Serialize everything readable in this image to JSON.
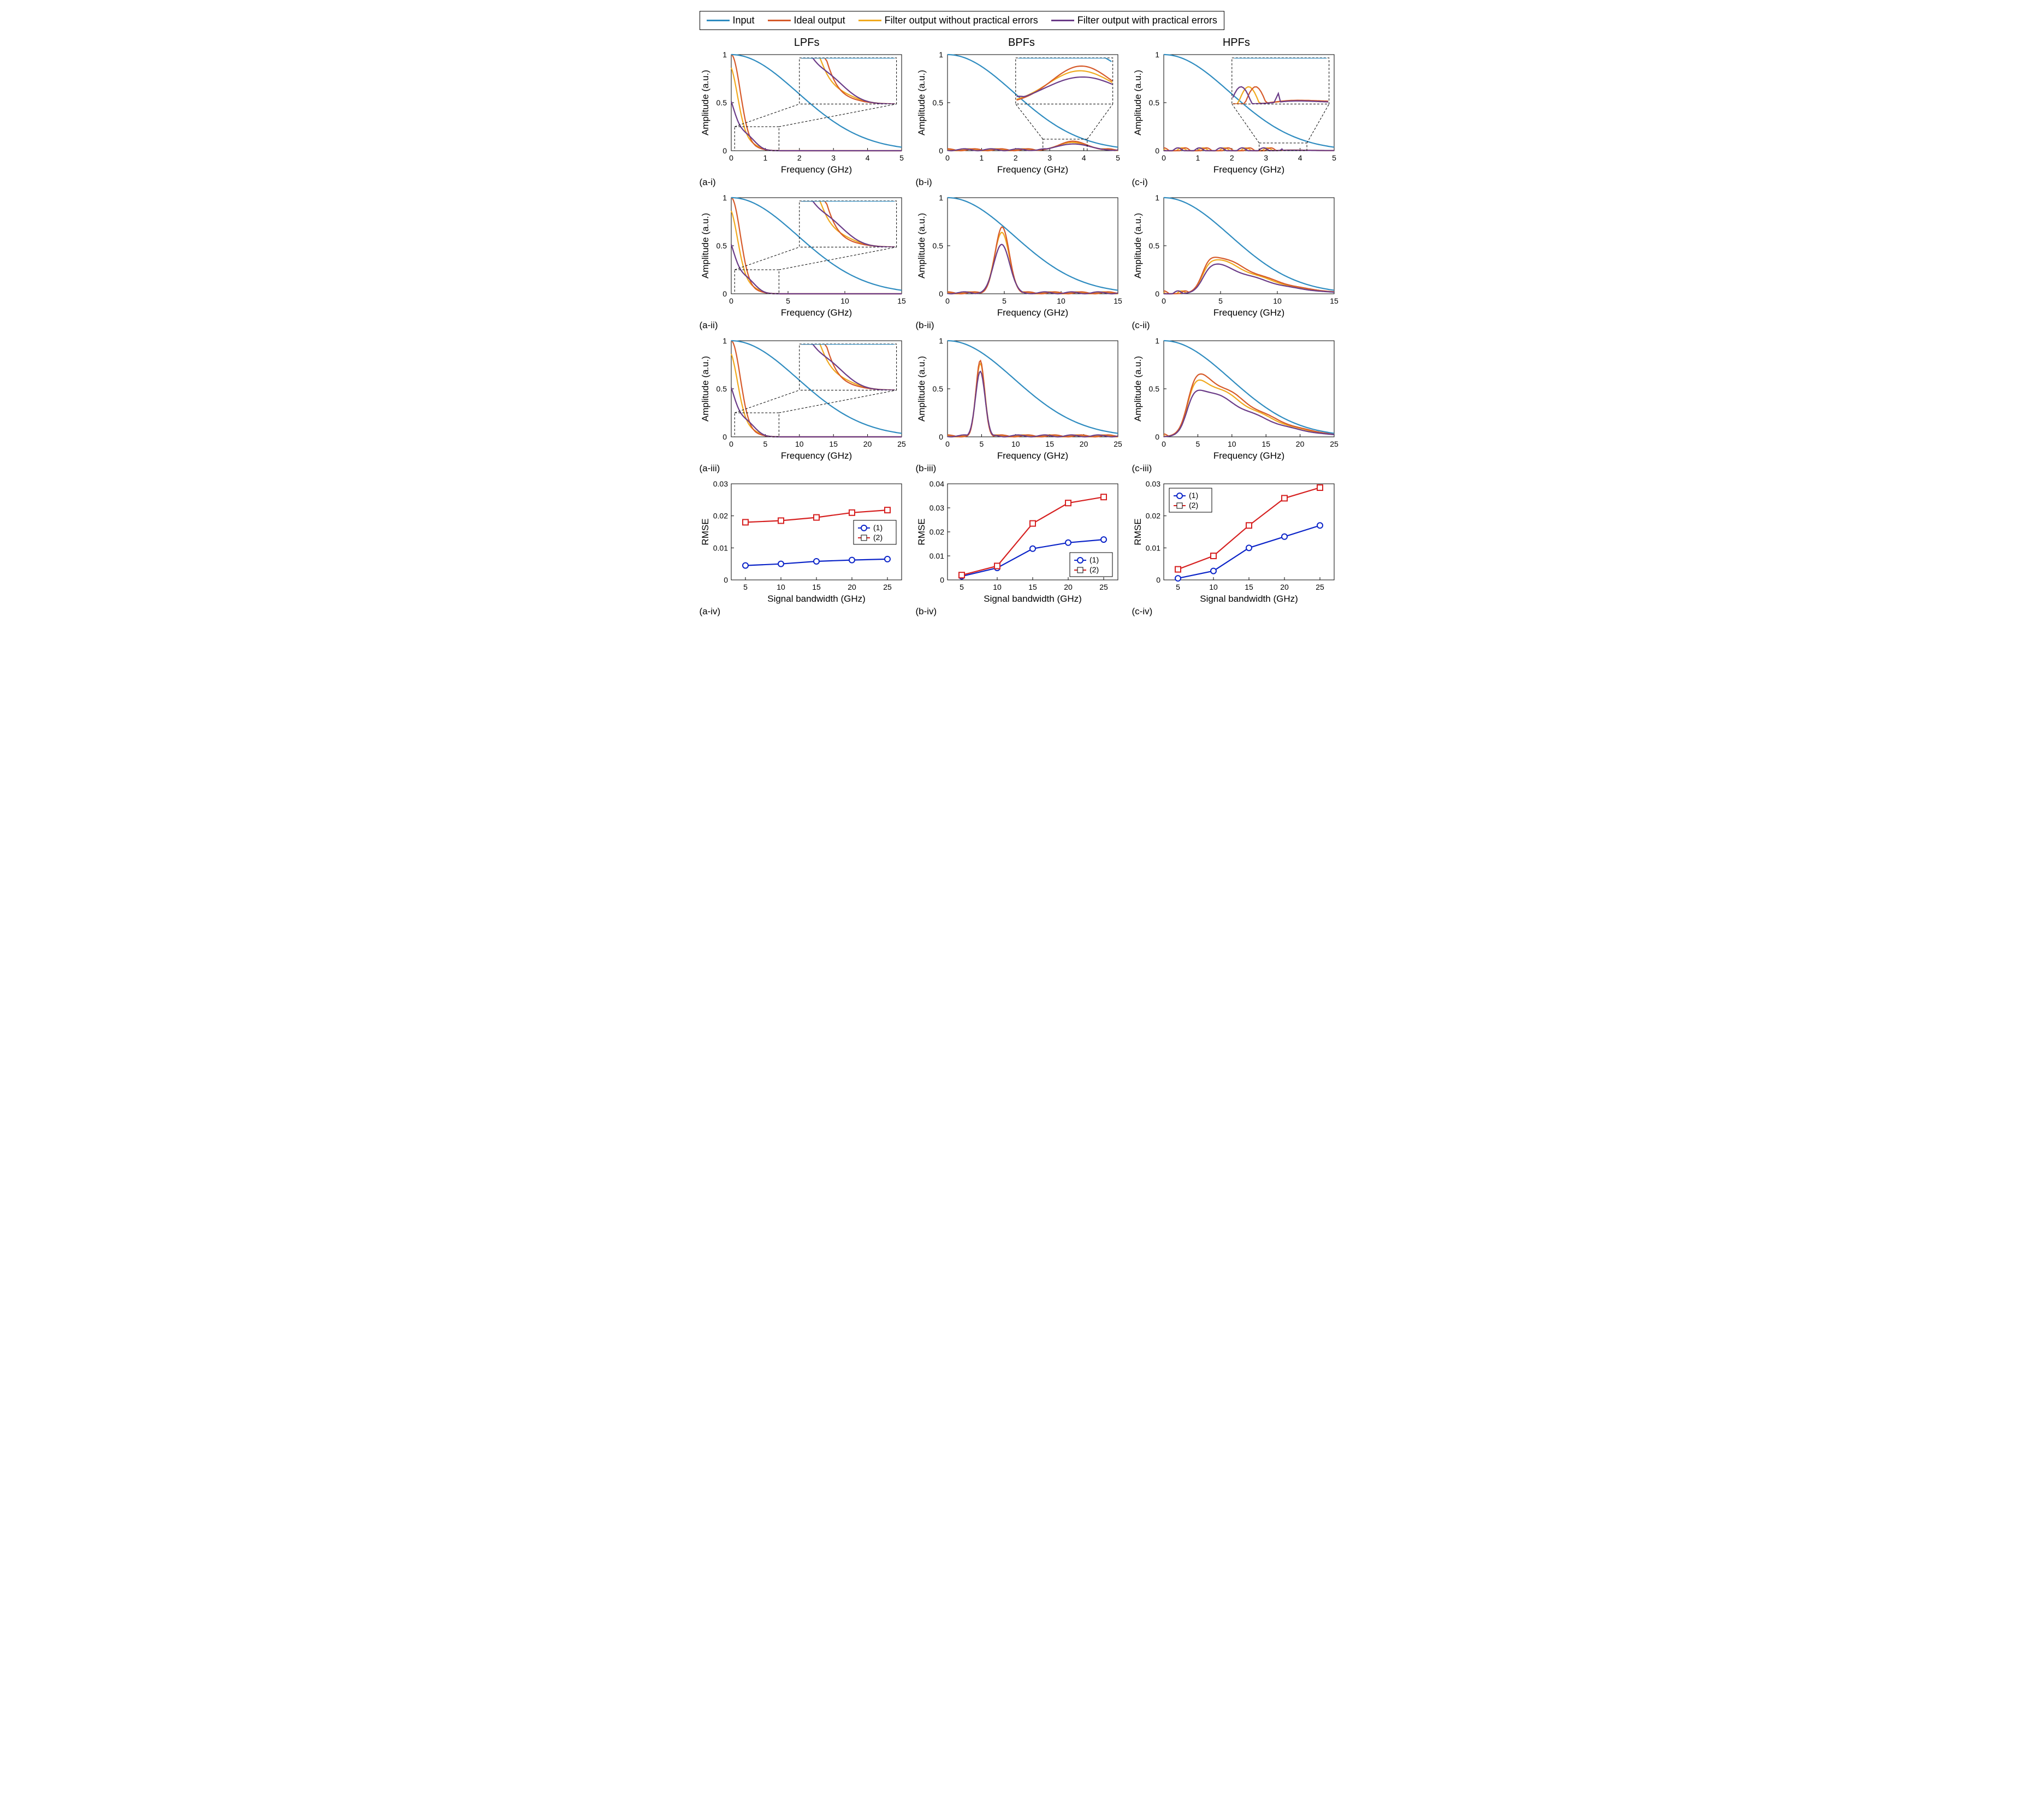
{
  "colors": {
    "input": "#2f8cc0",
    "ideal": "#d65a2a",
    "noerr": "#f0a91e",
    "err": "#6b3c88",
    "series1": "#0b24c8",
    "series2": "#d62020",
    "black": "#000000",
    "white": "#ffffff"
  },
  "legend": {
    "items": [
      {
        "key": "input",
        "label": "Input"
      },
      {
        "key": "ideal",
        "label": "Ideal output"
      },
      {
        "key": "noerr",
        "label": "Filter output without practical errors"
      },
      {
        "key": "err",
        "label": "Filter output with practical errors"
      }
    ]
  },
  "columns": [
    "LPFs",
    "BPFs",
    "HPFs"
  ],
  "yAmplitude": {
    "label": "Amplitude (a.u.)",
    "lim": [
      0,
      1
    ],
    "ticks": [
      0,
      0.5,
      1
    ]
  },
  "xFreq": {
    "label": "Frequency (GHz)"
  },
  "panels": {
    "a_i": {
      "label": "(a-i)",
      "xlim": [
        0,
        5
      ],
      "xticks": [
        0,
        1,
        2,
        3,
        4,
        5
      ]
    },
    "b_i": {
      "label": "(b-i)",
      "xlim": [
        0,
        5
      ],
      "xticks": [
        0,
        1,
        2,
        3,
        4,
        5
      ]
    },
    "c_i": {
      "label": "(c-i)",
      "xlim": [
        0,
        5
      ],
      "xticks": [
        0,
        1,
        2,
        3,
        4,
        5
      ]
    },
    "a_ii": {
      "label": "(a-ii)",
      "xlim": [
        0,
        15
      ],
      "xticks": [
        0,
        5,
        10,
        15
      ]
    },
    "b_ii": {
      "label": "(b-ii)",
      "xlim": [
        0,
        15
      ],
      "xticks": [
        0,
        5,
        10,
        15
      ]
    },
    "c_ii": {
      "label": "(c-ii)",
      "xlim": [
        0,
        15
      ],
      "xticks": [
        0,
        5,
        10,
        15
      ]
    },
    "a_iii": {
      "label": "(a-iii)",
      "xlim": [
        0,
        25
      ],
      "xticks": [
        0,
        5,
        10,
        15,
        20,
        25
      ]
    },
    "b_iii": {
      "label": "(b-iii)",
      "xlim": [
        0,
        25
      ],
      "xticks": [
        0,
        5,
        10,
        15,
        20,
        25
      ]
    },
    "c_iii": {
      "label": "(c-iii)",
      "xlim": [
        0,
        25
      ],
      "xticks": [
        0,
        5,
        10,
        15,
        20,
        25
      ]
    }
  },
  "rmse": {
    "xlabel": "Signal bandwidth (GHz)",
    "ylabel": "RMSE",
    "x": [
      5,
      10,
      15,
      20,
      25
    ],
    "legend": {
      "s1": "(1)",
      "s2": "(2)"
    },
    "a_iv": {
      "label": "(a-iv)",
      "ylim": [
        0,
        0.03
      ],
      "yticks": [
        0,
        0.01,
        0.02,
        0.03
      ],
      "s1": [
        0.0045,
        0.005,
        0.0058,
        0.0062,
        0.0065
      ],
      "s2": [
        0.018,
        0.0185,
        0.0195,
        0.021,
        0.0218
      ],
      "legend_pos": "right"
    },
    "b_iv": {
      "label": "(b-iv)",
      "ylim": [
        0,
        0.04
      ],
      "yticks": [
        0,
        0.01,
        0.02,
        0.03,
        0.04
      ],
      "s1": [
        0.0015,
        0.005,
        0.013,
        0.0155,
        0.0168
      ],
      "s2": [
        0.002,
        0.0058,
        0.0235,
        0.032,
        0.0345
      ],
      "legend_pos": "bottom-right"
    },
    "c_iv": {
      "label": "(c-iv)",
      "ylim": [
        0,
        0.03
      ],
      "yticks": [
        0,
        0.01,
        0.02,
        0.03
      ],
      "s1": [
        0.0005,
        0.0028,
        0.01,
        0.0135,
        0.017
      ],
      "s2": [
        0.0033,
        0.0075,
        0.017,
        0.0255,
        0.0288
      ],
      "legend_pos": "top-left"
    }
  },
  "inset_rows": [
    "i"
  ],
  "input_curve_comment": "Gaussian-like roll-off for Input line; filter outputs estimated",
  "line_width": 2.2,
  "axis_fontsize": 14,
  "label_fontsize": 17,
  "legend_fontsize": 18,
  "header_fontsize": 20
}
